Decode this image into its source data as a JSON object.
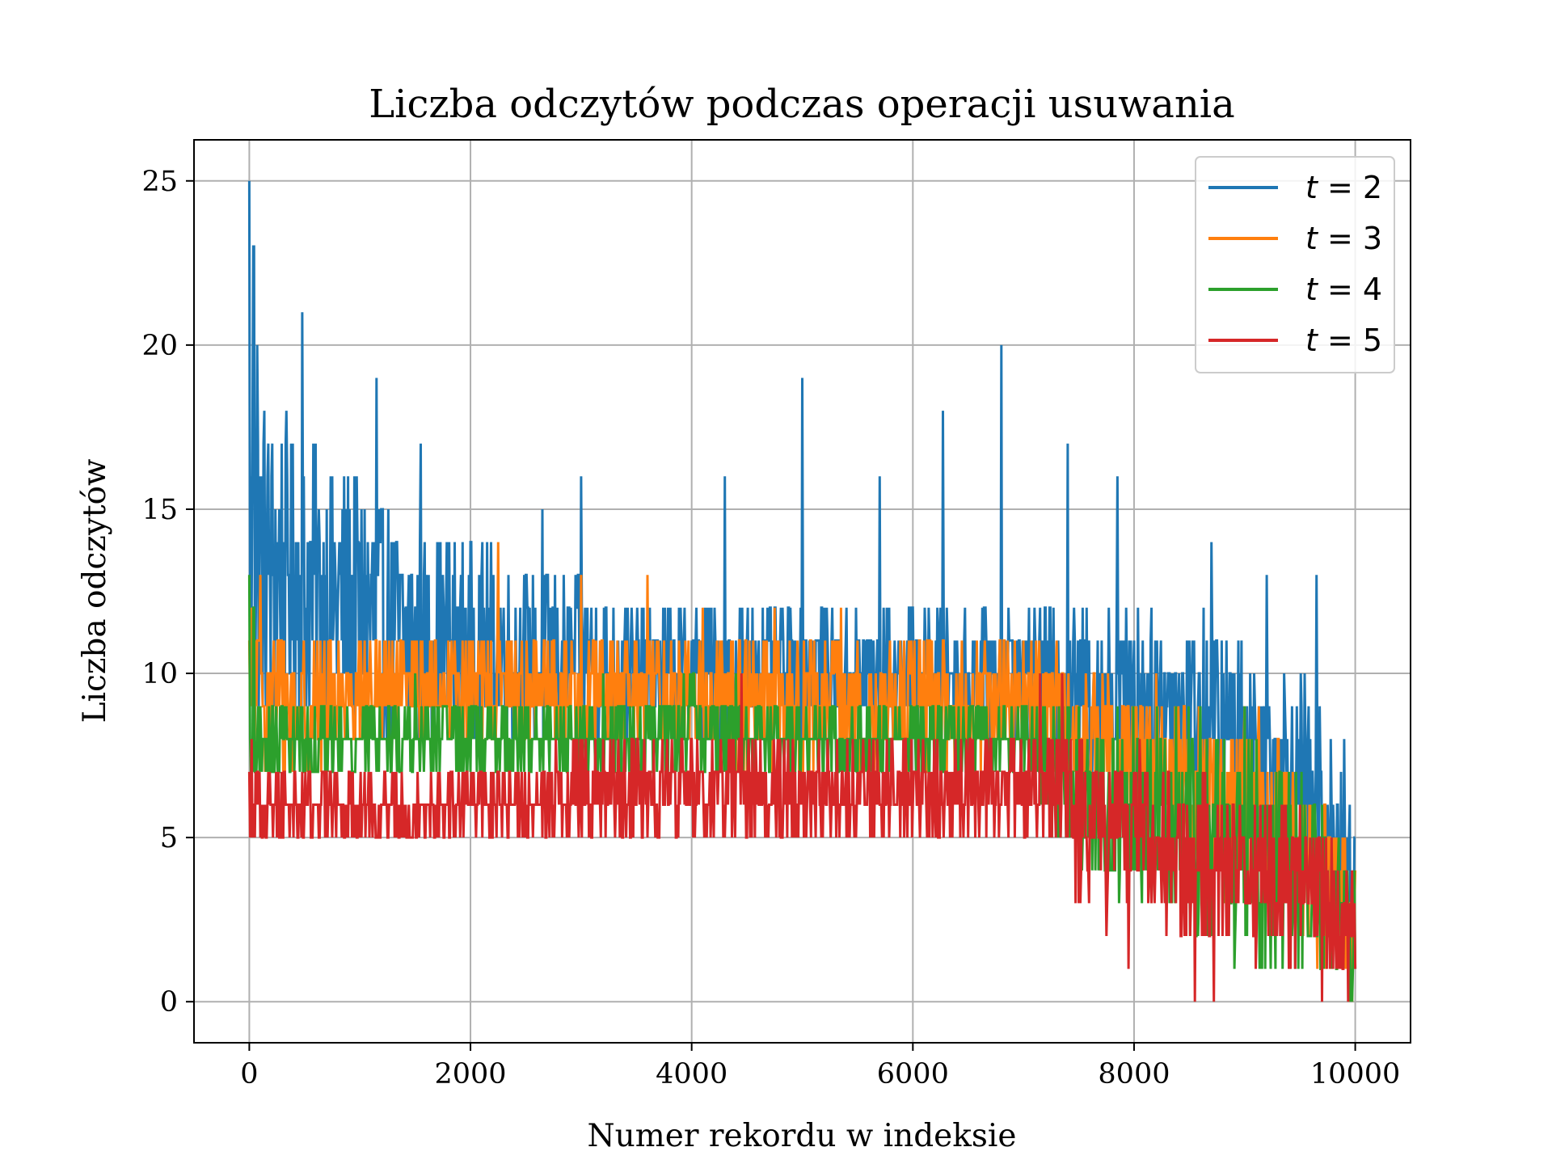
{
  "chart_data": {
    "type": "line",
    "title": "Liczba odczytów podczas operacji usuwania",
    "xlabel": "Numer rekordu w indeksie",
    "ylabel": "Liczba odczytów",
    "xlim": [
      -500,
      10500
    ],
    "ylim": [
      -1.25,
      26.25
    ],
    "xticks": [
      0,
      2000,
      4000,
      6000,
      8000,
      10000
    ],
    "xtick_labels": [
      "0",
      "2000",
      "4000",
      "6000",
      "8000",
      "10000"
    ],
    "yticks": [
      0,
      5,
      10,
      15,
      20,
      25
    ],
    "ytick_labels": [
      "0",
      "5",
      "10",
      "15",
      "20",
      "25"
    ],
    "grid": true,
    "legend_position": "top-right",
    "series": [
      {
        "name": "t = 2",
        "legend_var": "t",
        "legend_val": "2",
        "color": "#1f77b4",
        "x": [
          0,
          500,
          1000,
          1500,
          2000,
          2500,
          3000,
          3500,
          4000,
          4500,
          5000,
          5500,
          6000,
          6500,
          7000,
          7500,
          8000,
          8500,
          9000,
          9500,
          10000
        ],
        "low": [
          9,
          8,
          8,
          8,
          8,
          8,
          8,
          8,
          8,
          8,
          8,
          8,
          8,
          8,
          8,
          7,
          7,
          6,
          5,
          4,
          0
        ],
        "high": [
          19,
          17,
          16,
          14,
          14,
          13,
          13,
          12,
          12,
          12,
          12,
          12,
          12,
          12,
          12,
          12,
          12,
          12,
          11,
          10,
          7
        ],
        "peaks": [
          [
            0,
            25
          ],
          [
            40,
            23
          ],
          [
            70,
            20
          ],
          [
            480,
            21
          ],
          [
            1150,
            19
          ],
          [
            1550,
            17
          ],
          [
            2650,
            15
          ],
          [
            3000,
            16
          ],
          [
            4300,
            16
          ],
          [
            5000,
            19
          ],
          [
            5700,
            16
          ],
          [
            6270,
            18
          ],
          [
            6800,
            20
          ],
          [
            7400,
            17
          ],
          [
            7850,
            16
          ],
          [
            8700,
            14
          ],
          [
            9200,
            13
          ],
          [
            9650,
            13
          ]
        ]
      },
      {
        "name": "t = 3",
        "legend_var": "t",
        "legend_val": "3",
        "color": "#ff7f0e",
        "x": [
          0,
          500,
          1000,
          1500,
          2000,
          2500,
          3000,
          3500,
          4000,
          4500,
          5000,
          5500,
          6000,
          6500,
          7000,
          7500,
          8000,
          8500,
          9000,
          9500,
          10000
        ],
        "low": [
          7,
          7,
          8,
          8,
          8,
          8,
          8,
          8,
          8,
          7,
          7,
          7,
          7,
          7,
          8,
          6,
          5,
          4,
          3,
          2,
          0
        ],
        "high": [
          12,
          11,
          11,
          11,
          11,
          11,
          11,
          11,
          11,
          11,
          11,
          11,
          11,
          11,
          11,
          10,
          10,
          9,
          9,
          8,
          4
        ],
        "peaks": [
          [
            100,
            13
          ],
          [
            2250,
            14
          ],
          [
            3000,
            13
          ],
          [
            3600,
            13
          ],
          [
            4100,
            12
          ],
          [
            4750,
            12
          ],
          [
            5350,
            12
          ],
          [
            6100,
            11
          ],
          [
            7300,
            11
          ],
          [
            8200,
            10
          ],
          [
            9000,
            9
          ]
        ]
      },
      {
        "name": "t = 4",
        "legend_var": "t",
        "legend_val": "4",
        "color": "#2ca02c",
        "x": [
          0,
          500,
          1000,
          1500,
          2000,
          2500,
          3000,
          3500,
          4000,
          4500,
          5000,
          5500,
          6000,
          6500,
          7000,
          7500,
          8000,
          8500,
          9000,
          9500,
          10000
        ],
        "low": [
          6,
          7,
          7,
          7,
          7,
          7,
          7,
          7,
          7,
          7,
          7,
          7,
          7,
          7,
          7,
          4,
          3,
          2,
          1,
          1,
          0
        ],
        "high": [
          9,
          9,
          9,
          9,
          9,
          9,
          9,
          9,
          10,
          9,
          9,
          9,
          9,
          9,
          9,
          9,
          9,
          9,
          8,
          7,
          5
        ],
        "peaks": [
          [
            0,
            13
          ],
          [
            40,
            12
          ],
          [
            1500,
            10
          ],
          [
            3200,
            10
          ],
          [
            4000,
            10
          ],
          [
            4400,
            10
          ],
          [
            6300,
            9
          ],
          [
            7500,
            9
          ],
          [
            8600,
            9
          ],
          [
            9000,
            9
          ]
        ]
      },
      {
        "name": "t = 5",
        "legend_var": "t",
        "legend_val": "5",
        "color": "#d62728",
        "x": [
          0,
          500,
          1000,
          1500,
          2000,
          2500,
          3000,
          3500,
          4000,
          4500,
          5000,
          5500,
          6000,
          6500,
          7000,
          7400,
          7450,
          8000,
          8500,
          9000,
          9500,
          10000
        ],
        "low": [
          5,
          5,
          5,
          5,
          5,
          5,
          5,
          5,
          5,
          5,
          5,
          5,
          5,
          5,
          5,
          5,
          3,
          3,
          2,
          2,
          1,
          0
        ],
        "high": [
          7,
          7,
          7,
          7,
          7,
          7,
          8,
          8,
          8,
          8,
          8,
          8,
          8,
          8,
          8,
          9,
          8,
          7,
          7,
          6,
          6,
          4
        ],
        "peaks": [
          [
            20,
            8
          ],
          [
            4450,
            10
          ],
          [
            7150,
            10
          ],
          [
            7350,
            10
          ],
          [
            8050,
            8
          ],
          [
            8550,
            7
          ]
        ],
        "dips": [
          [
            7750,
            2
          ],
          [
            7950,
            1
          ],
          [
            8550,
            0
          ],
          [
            8720,
            0
          ],
          [
            9100,
            1
          ],
          [
            9400,
            1
          ],
          [
            9700,
            0
          ]
        ]
      }
    ]
  }
}
